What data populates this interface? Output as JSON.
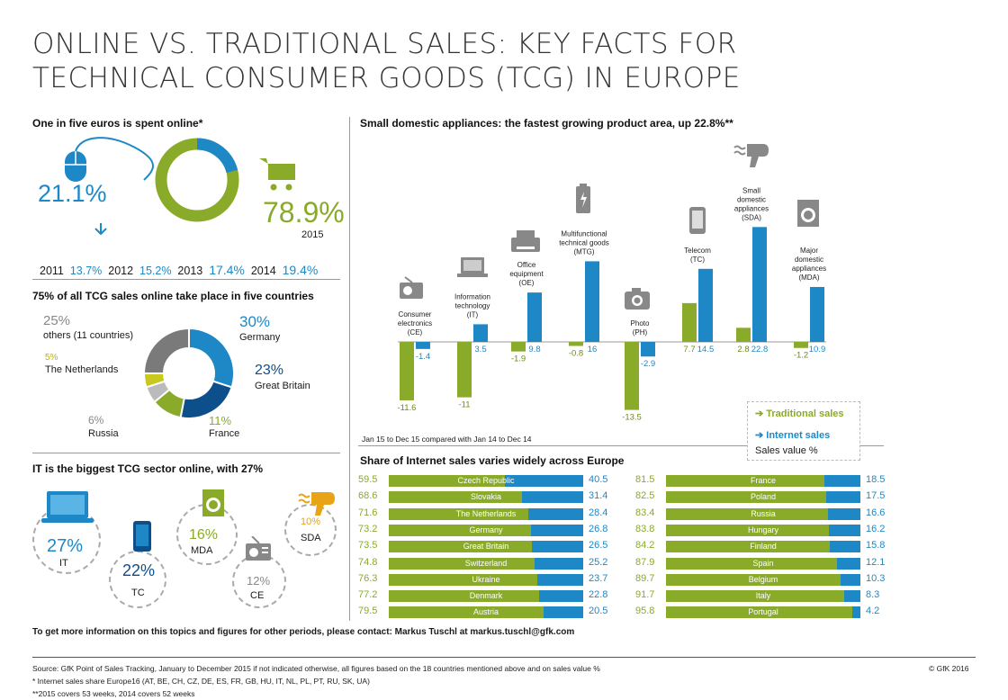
{
  "title_line1": "ONLINE VS. TRADITIONAL SALES: KEY FACTS FOR",
  "title_line2": "TECHNICAL CONSUMER GOODS (TCG) IN EUROPE",
  "panel1": {
    "heading": "One in five euros is spent online*",
    "online_pct": "21.1%",
    "offline_pct": "78.9%",
    "year_label": "2015",
    "years": [
      {
        "year": "2011",
        "value": "13.7%"
      },
      {
        "year": "2012",
        "value": "15.2%"
      },
      {
        "year": "2013",
        "value": "17.4%"
      },
      {
        "year": "2014",
        "value": "19.4%"
      }
    ]
  },
  "panel2": {
    "heading": "75% of all TCG sales online take place in five countries",
    "segments": [
      {
        "pct": "30%",
        "label": "Germany",
        "value": 30,
        "color": "#1e88c7"
      },
      {
        "pct": "23%",
        "label": "Great Britain",
        "value": 23,
        "color": "#0d4f8b"
      },
      {
        "pct": "11%",
        "label": "France",
        "value": 11,
        "color": "#8aaa2a"
      },
      {
        "pct": "6%",
        "label": "Russia",
        "value": 6,
        "color": "#bbbbbb"
      },
      {
        "pct": "5%",
        "label": "The Netherlands",
        "value": 5,
        "color": "#c8c81e"
      },
      {
        "pct": "25%",
        "label": "others (11 countries)",
        "value": 25,
        "color": "#7a7a7a"
      }
    ]
  },
  "panel3": {
    "heading": "IT is the biggest TCG sector online, with 27%",
    "sectors": [
      {
        "pct": "27%",
        "label": "IT"
      },
      {
        "pct": "22%",
        "label": "TC"
      },
      {
        "pct": "16%",
        "label": "MDA"
      },
      {
        "pct": "12%",
        "label": "CE"
      },
      {
        "pct": "10%",
        "label": "SDA"
      }
    ]
  },
  "chart_data": [
    {
      "type": "bar",
      "title": "Small domestic appliances: the fastest growing product area, up 22.8%**",
      "categories": [
        "Consumer electronics (CE)",
        "Information technology (IT)",
        "Office equipment (OE)",
        "Multifunctional technical goods (MTG)",
        "Photo (PH)",
        "Telecom (TC)",
        "Small domestic appliances (SDA)",
        "Major domestic appliances (MDA)"
      ],
      "category_lines": [
        [
          "Consumer",
          "electronics",
          "(CE)"
        ],
        [
          "Information",
          "technology",
          "(IT)"
        ],
        [
          "Office",
          "equipment",
          "(OE)"
        ],
        [
          "Multifunctional",
          "technical goods",
          "(MTG)"
        ],
        [
          "Photo",
          "(PH)"
        ],
        [
          "Telecom",
          "(TC)"
        ],
        [
          "Small",
          "domestic",
          "appliances",
          "(SDA)"
        ],
        [
          "Major",
          "domestic",
          "appliances",
          "(MDA)"
        ]
      ],
      "series": [
        {
          "name": "Traditional sales",
          "color": "#8aaa2a",
          "values": [
            -11.6,
            -11,
            -1.9,
            -0.8,
            -13.5,
            7.7,
            2.8,
            -1.2
          ]
        },
        {
          "name": "Internet sales",
          "color": "#1e88c7",
          "values": [
            -1.4,
            3.5,
            9.8,
            16,
            -2.9,
            14.5,
            22.8,
            10.9
          ]
        }
      ],
      "value_labels": {
        "traditional": [
          "-11.6",
          "-11",
          "-1.9",
          "-0.8",
          "-13.5",
          "7.7",
          "2.8",
          "-1.2"
        ],
        "internet": [
          "-1.4",
          "3.5",
          "9.8",
          "16",
          "-2.9",
          "14.5",
          "22.8",
          "10.9"
        ]
      },
      "note": "Jan 15 to Dec 15 compared with Jan 14 to Dec 14",
      "legend_unit": "Sales value %",
      "legend_position": "bottom-right"
    },
    {
      "type": "bar",
      "title": "Share of Internet sales varies widely across Europe",
      "stacked": true,
      "left": [
        {
          "country": "Czech Republic",
          "traditional": 59.5,
          "internet": 40.5,
          "t_label": "59.5",
          "i_label": "40.5"
        },
        {
          "country": "Slovakia",
          "traditional": 68.6,
          "internet": 31.4,
          "t_label": "68.6",
          "i_label": "31.4"
        },
        {
          "country": "The Netherlands",
          "traditional": 71.6,
          "internet": 28.4,
          "t_label": "71.6",
          "i_label": "28.4"
        },
        {
          "country": "Germany",
          "traditional": 73.2,
          "internet": 26.8,
          "t_label": "73.2",
          "i_label": "26.8"
        },
        {
          "country": "Great Britain",
          "traditional": 73.5,
          "internet": 26.5,
          "t_label": "73.5",
          "i_label": "26.5"
        },
        {
          "country": "Switzerland",
          "traditional": 74.8,
          "internet": 25.2,
          "t_label": "74.8",
          "i_label": "25.2"
        },
        {
          "country": "Ukraine",
          "traditional": 76.3,
          "internet": 23.7,
          "t_label": "76.3",
          "i_label": "23.7"
        },
        {
          "country": "Denmark",
          "traditional": 77.2,
          "internet": 22.8,
          "t_label": "77.2",
          "i_label": "22.8"
        },
        {
          "country": "Austria",
          "traditional": 79.5,
          "internet": 20.5,
          "t_label": "79.5",
          "i_label": "20.5"
        }
      ],
      "right": [
        {
          "country": "France",
          "traditional": 81.5,
          "internet": 18.5,
          "t_label": "81.5",
          "i_label": "18.5"
        },
        {
          "country": "Poland",
          "traditional": 82.5,
          "internet": 17.5,
          "t_label": "82.5",
          "i_label": "17.5"
        },
        {
          "country": "Russia",
          "traditional": 83.4,
          "internet": 16.6,
          "t_label": "83.4",
          "i_label": "16.6"
        },
        {
          "country": "Hungary",
          "traditional": 83.8,
          "internet": 16.2,
          "t_label": "83.8",
          "i_label": "16.2"
        },
        {
          "country": "Finland",
          "traditional": 84.2,
          "internet": 15.8,
          "t_label": "84.2",
          "i_label": "15.8"
        },
        {
          "country": "Spain",
          "traditional": 87.9,
          "internet": 12.1,
          "t_label": "87.9",
          "i_label": "12.1"
        },
        {
          "country": "Belgium",
          "traditional": 89.7,
          "internet": 10.3,
          "t_label": "89.7",
          "i_label": "10.3"
        },
        {
          "country": "Italy",
          "traditional": 91.7,
          "internet": 8.3,
          "t_label": "91.7",
          "i_label": "8.3"
        },
        {
          "country": "Portugal",
          "traditional": 95.8,
          "internet": 4.2,
          "t_label": "95.8",
          "i_label": "4.2"
        }
      ]
    }
  ],
  "contact": "To get more information on this topics and figures for other periods, please contact: Markus Tuschl at markus.tuschl@gfk.com",
  "footer": {
    "source": "Source: GfK Point of Sales Tracking, January to December 2015 if not indicated otherwise, all figures based on the 18 countries mentioned above and on sales value %",
    "note1": "* Internet sales share Europe16 (AT, BE, CH, CZ, DE, ES, FR, GB, HU, IT, NL, PL, PT, RU, SK, UA)",
    "note2": "**2015 covers 53 weeks, 2014 covers 52 weeks",
    "copyright": "© GfK 2016"
  },
  "colors": {
    "green": "#8aaa2a",
    "blue": "#1e88c7",
    "darkblue": "#0d4f8b",
    "gray": "#7a7a7a"
  }
}
